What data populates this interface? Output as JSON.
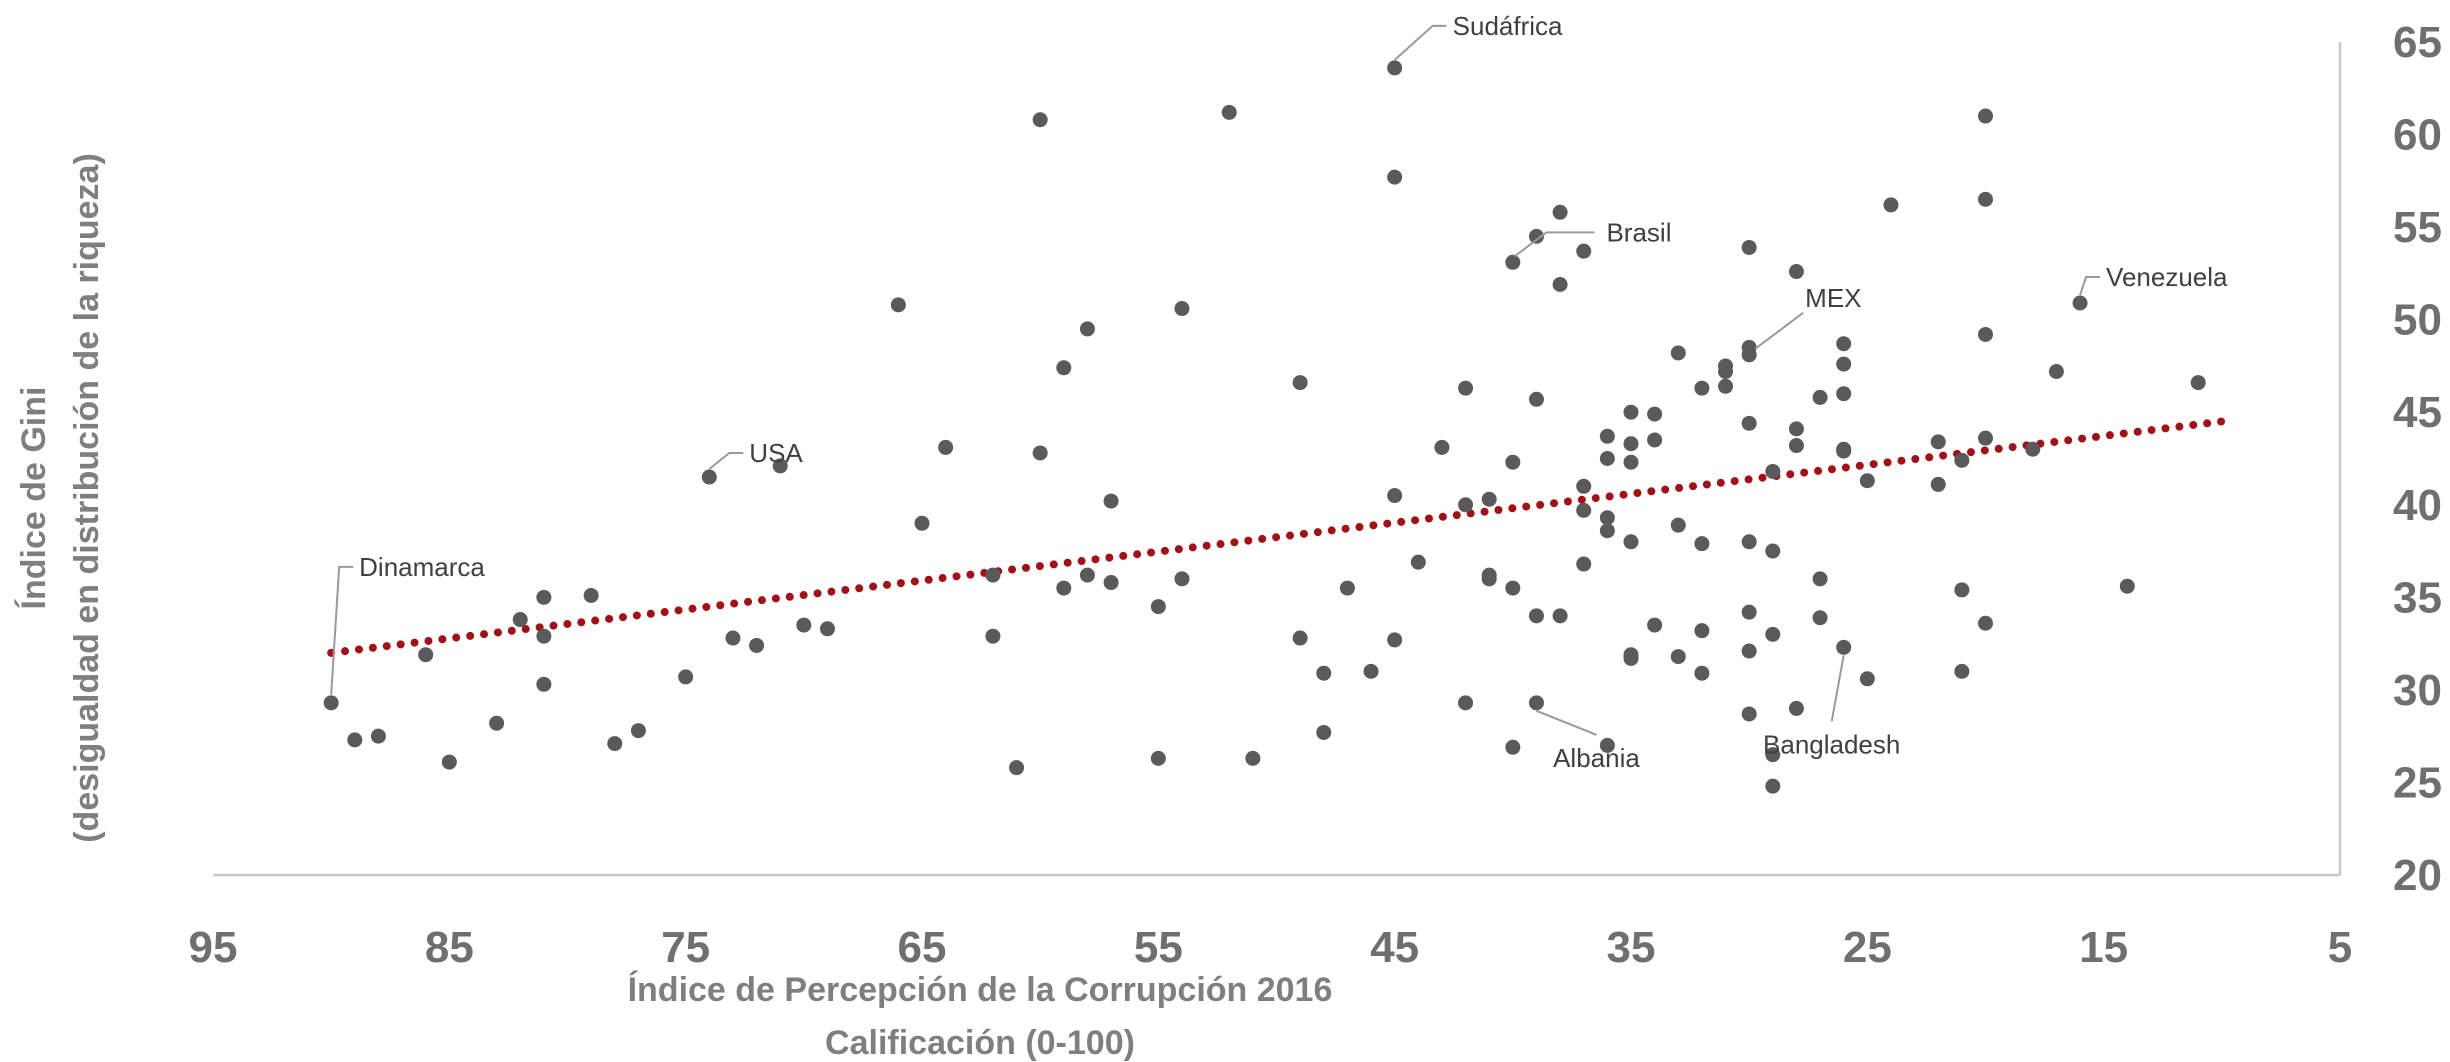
{
  "chart_data": {
    "type": "scatter",
    "xlabel": [
      "Índice de Percepción de la Corrupción 2016",
      "Calificación (0-100)"
    ],
    "ylabel": [
      "Índice de Gini",
      "(desigualdad en distribución de la riqueza)"
    ],
    "xlim": [
      95,
      5
    ],
    "x_reversed": true,
    "xticks": [
      95,
      85,
      75,
      65,
      55,
      45,
      35,
      25,
      15,
      5
    ],
    "ylim": [
      20,
      65
    ],
    "yticks": [
      20,
      25,
      30,
      35,
      40,
      45,
      50,
      55,
      60,
      65
    ],
    "y_axis_position": "right",
    "grid": false,
    "trendline": {
      "style": "dotted",
      "color": "#a50f15",
      "x": [
        90,
        10
      ],
      "y": [
        32.0,
        44.5
      ]
    },
    "point_color": "#5a5a5a",
    "points": [
      [
        90,
        29.3
      ],
      [
        89,
        27.3
      ],
      [
        88,
        27.5
      ],
      [
        86,
        31.9
      ],
      [
        85,
        26.1
      ],
      [
        83,
        28.2
      ],
      [
        82,
        33.8
      ],
      [
        81,
        35.0
      ],
      [
        81,
        32.9
      ],
      [
        81,
        30.3
      ],
      [
        79,
        35.1
      ],
      [
        78,
        27.1
      ],
      [
        77,
        27.8
      ],
      [
        75,
        30.7
      ],
      [
        74,
        41.5
      ],
      [
        73,
        32.8
      ],
      [
        72,
        32.4
      ],
      [
        71,
        42.1
      ],
      [
        70,
        33.5
      ],
      [
        69,
        33.3
      ],
      [
        66,
        50.8
      ],
      [
        65,
        39.0
      ],
      [
        64,
        43.1
      ],
      [
        62,
        36.2
      ],
      [
        62,
        32.9
      ],
      [
        61,
        25.8
      ],
      [
        60,
        60.8
      ],
      [
        60,
        42.8
      ],
      [
        59,
        47.4
      ],
      [
        59,
        35.5
      ],
      [
        58,
        49.5
      ],
      [
        58,
        36.2
      ],
      [
        57,
        40.2
      ],
      [
        57,
        35.8
      ],
      [
        55,
        34.5
      ],
      [
        55,
        26.3
      ],
      [
        54,
        50.6
      ],
      [
        54,
        36.0
      ],
      [
        52,
        61.2
      ],
      [
        51,
        26.3
      ],
      [
        49,
        46.6
      ],
      [
        49,
        32.8
      ],
      [
        48,
        30.9
      ],
      [
        48,
        27.7
      ],
      [
        47,
        35.5
      ],
      [
        46,
        31.0
      ],
      [
        45,
        63.6
      ],
      [
        45,
        57.7
      ],
      [
        45,
        40.5
      ],
      [
        45,
        32.7
      ],
      [
        44,
        36.9
      ],
      [
        43,
        43.1
      ],
      [
        42,
        46.3
      ],
      [
        42,
        40.0
      ],
      [
        42,
        29.3
      ],
      [
        41,
        40.3
      ],
      [
        41,
        36.2
      ],
      [
        41,
        36.0
      ],
      [
        40,
        53.1
      ],
      [
        40,
        42.3
      ],
      [
        40,
        35.5
      ],
      [
        40,
        26.9
      ],
      [
        39,
        54.5
      ],
      [
        39,
        45.7
      ],
      [
        39,
        34.0
      ],
      [
        39,
        29.3
      ],
      [
        38,
        55.8
      ],
      [
        38,
        51.9
      ],
      [
        38,
        34.0
      ],
      [
        37,
        53.7
      ],
      [
        37,
        41.0
      ],
      [
        37,
        39.7
      ],
      [
        37,
        36.8
      ],
      [
        36,
        43.7
      ],
      [
        36,
        42.5
      ],
      [
        36,
        39.3
      ],
      [
        36,
        38.6
      ],
      [
        36,
        27.0
      ],
      [
        35,
        45.0
      ],
      [
        35,
        43.3
      ],
      [
        35,
        42.3
      ],
      [
        35,
        38.0
      ],
      [
        35,
        31.9
      ],
      [
        35,
        31.7
      ],
      [
        34,
        44.9
      ],
      [
        34,
        43.5
      ],
      [
        34,
        33.5
      ],
      [
        33,
        48.2
      ],
      [
        33,
        38.9
      ],
      [
        33,
        31.8
      ],
      [
        32,
        46.3
      ],
      [
        32,
        37.9
      ],
      [
        32,
        33.2
      ],
      [
        32,
        30.9
      ],
      [
        31,
        47.5
      ],
      [
        31,
        47.2
      ],
      [
        31,
        46.4
      ],
      [
        30,
        53.9
      ],
      [
        30,
        48.5
      ],
      [
        30,
        48.1
      ],
      [
        30,
        44.4
      ],
      [
        30,
        38.0
      ],
      [
        30,
        34.2
      ],
      [
        30,
        32.1
      ],
      [
        30,
        28.7
      ],
      [
        29,
        41.8
      ],
      [
        29,
        37.5
      ],
      [
        29,
        33.0
      ],
      [
        29,
        26.5
      ],
      [
        29,
        24.8
      ],
      [
        28,
        52.6
      ],
      [
        28,
        44.1
      ],
      [
        28,
        43.2
      ],
      [
        28,
        29.0
      ],
      [
        27,
        45.8
      ],
      [
        27,
        36.0
      ],
      [
        27,
        33.9
      ],
      [
        26,
        48.7
      ],
      [
        26,
        47.6
      ],
      [
        26,
        46.0
      ],
      [
        26,
        43.0
      ],
      [
        26,
        42.9
      ],
      [
        26,
        32.3
      ],
      [
        25,
        41.3
      ],
      [
        25,
        30.6
      ],
      [
        24,
        56.2
      ],
      [
        22,
        43.4
      ],
      [
        22,
        41.1
      ],
      [
        21,
        42.4
      ],
      [
        21,
        35.4
      ],
      [
        21,
        31.0
      ],
      [
        20,
        61.0
      ],
      [
        20,
        56.5
      ],
      [
        20,
        49.2
      ],
      [
        20,
        43.6
      ],
      [
        20,
        33.6
      ],
      [
        18,
        43.0
      ],
      [
        17,
        47.2
      ],
      [
        16,
        50.9
      ],
      [
        14,
        35.6
      ],
      [
        11,
        46.6
      ]
    ],
    "annotations": [
      {
        "label": "Sudáfrica",
        "x": 45,
        "y": 63.6
      },
      {
        "label": "Brasil",
        "x": 39,
        "y": 54.5
      },
      {
        "label": "MEX",
        "x": 30,
        "y": 48.1
      },
      {
        "label": "Venezuela",
        "x": 16,
        "y": 50.9
      },
      {
        "label": "USA",
        "x": 74,
        "y": 41.5
      },
      {
        "label": "Dinamarca",
        "x": 90,
        "y": 29.3
      },
      {
        "label": "Albania",
        "x": 39,
        "y": 29.3
      },
      {
        "label": "Bangladesh",
        "x": 26,
        "y": 32.3
      }
    ]
  }
}
